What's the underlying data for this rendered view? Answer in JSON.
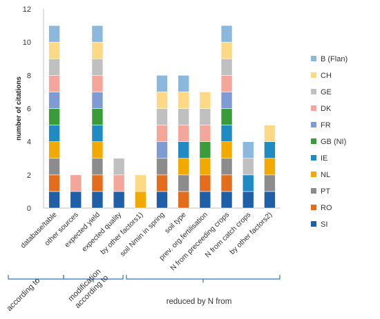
{
  "chart_data": {
    "type": "bar",
    "stacked": true,
    "ylabel": "number of citations",
    "ylim": [
      0,
      12
    ],
    "yticks": [
      0,
      2,
      4,
      6,
      8,
      10,
      12
    ],
    "grid": false,
    "legend_position": "right",
    "categories": [
      "database/table",
      "other sources",
      "expected yield",
      "expected quality",
      "by other factors1)",
      "soil Nmin in spring",
      "soil type",
      "prev. org.fertilisation",
      "N from preceeding crops",
      "N from catch crops",
      "by other factors2)"
    ],
    "series": [
      {
        "name": "SI",
        "color": "#1f5fa8",
        "values": [
          1,
          1,
          1,
          1,
          0,
          1,
          0,
          1,
          1,
          1,
          1
        ]
      },
      {
        "name": "RO",
        "color": "#e36c1d",
        "values": [
          1,
          0,
          1,
          0,
          0,
          1,
          1,
          1,
          1,
          0,
          0
        ]
      },
      {
        "name": "PT",
        "color": "#8c8c8c",
        "values": [
          1,
          0,
          1,
          0,
          0,
          1,
          1,
          0,
          1,
          0,
          1
        ]
      },
      {
        "name": "NL",
        "color": "#f2a900",
        "values": [
          1,
          0,
          1,
          0,
          1,
          0,
          1,
          1,
          1,
          0,
          1
        ]
      },
      {
        "name": "IE",
        "color": "#1f8bc2",
        "values": [
          1,
          0,
          1,
          0,
          0,
          0,
          1,
          0,
          1,
          1,
          1
        ]
      },
      {
        "name": "GB (NI)",
        "color": "#3a9b3a",
        "values": [
          1,
          0,
          1,
          0,
          0,
          0,
          0,
          1,
          1,
          0,
          0
        ]
      },
      {
        "name": "FR",
        "color": "#7f9bd4",
        "values": [
          1,
          0,
          1,
          0,
          0,
          1,
          0,
          0,
          1,
          0,
          0
        ]
      },
      {
        "name": "DK",
        "color": "#f4a69a",
        "values": [
          1,
          1,
          1,
          1,
          0,
          1,
          1,
          1,
          1,
          0,
          0
        ]
      },
      {
        "name": "GE",
        "color": "#c0c0c0",
        "values": [
          1,
          0,
          1,
          1,
          0,
          1,
          1,
          1,
          1,
          1,
          0
        ]
      },
      {
        "name": "CH",
        "color": "#fdd885",
        "values": [
          1,
          0,
          1,
          0,
          1,
          1,
          1,
          1,
          1,
          0,
          1
        ]
      },
      {
        "name": "B (Flan)",
        "color": "#8db8de",
        "values": [
          1,
          0,
          1,
          0,
          0,
          1,
          1,
          0,
          1,
          1,
          0
        ]
      }
    ],
    "legend_order": [
      "B (Flan)",
      "CH",
      "GE",
      "DK",
      "FR",
      "GB (NI)",
      "IE",
      "NL",
      "PT",
      "RO",
      "SI"
    ],
    "groups": [
      {
        "label": "according to",
        "from": "database/table",
        "to": "other sources"
      },
      {
        "label": "modification according to",
        "from": "expected yield",
        "to": "by other factors1)"
      },
      {
        "label": "reduced by N from",
        "from": "soil Nmin in spring",
        "to": "N from catch crops"
      }
    ]
  }
}
